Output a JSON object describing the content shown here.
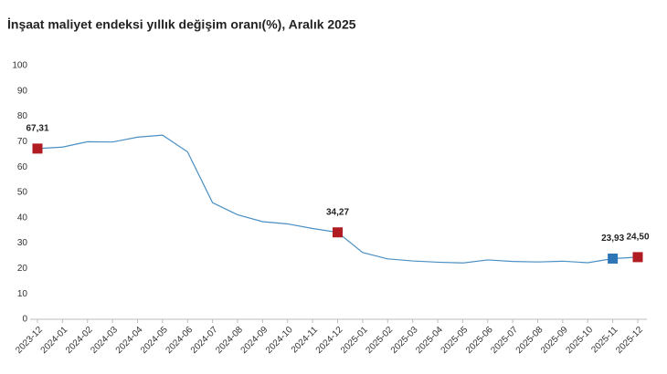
{
  "chart_data": {
    "type": "line",
    "title": "İnşaat maliyet endeksi yıllık değişim oranı(%), Aralık 2025",
    "categories": [
      "2023-12",
      "2024-01",
      "2024-02",
      "2024-03",
      "2024-04",
      "2024-05",
      "2024-06",
      "2024-07",
      "2024-08",
      "2024-09",
      "2024-10",
      "2024-11",
      "2024-12",
      "2025-01",
      "2025-02",
      "2025-03",
      "2025-04",
      "2025-05",
      "2025-06",
      "2025-07",
      "2025-08",
      "2025-09",
      "2025-10",
      "2025-11",
      "2025-12"
    ],
    "values": [
      67.31,
      67.9,
      70.0,
      69.9,
      71.8,
      72.6,
      66.0,
      46.0,
      41.2,
      38.5,
      37.6,
      35.8,
      34.27,
      26.3,
      23.8,
      23.0,
      22.5,
      22.2,
      23.4,
      22.8,
      22.6,
      22.9,
      22.3,
      23.93,
      24.5
    ],
    "value_labels": [
      "67,31",
      null,
      null,
      null,
      null,
      null,
      null,
      null,
      null,
      null,
      null,
      null,
      "34,27",
      null,
      null,
      null,
      null,
      null,
      null,
      null,
      null,
      null,
      null,
      "23,93",
      "24,50"
    ],
    "marker_colors": [
      "#b01c22",
      null,
      null,
      null,
      null,
      null,
      null,
      null,
      null,
      null,
      null,
      null,
      "#b01c22",
      null,
      null,
      null,
      null,
      null,
      null,
      null,
      null,
      null,
      null,
      "#2e75b6",
      "#b01c22"
    ],
    "color": "#4a8fc4",
    "ylim": [
      0,
      100
    ],
    "yticks": [
      0,
      10,
      20,
      30,
      40,
      50,
      60,
      70,
      80,
      90,
      100
    ],
    "grid": false
  }
}
